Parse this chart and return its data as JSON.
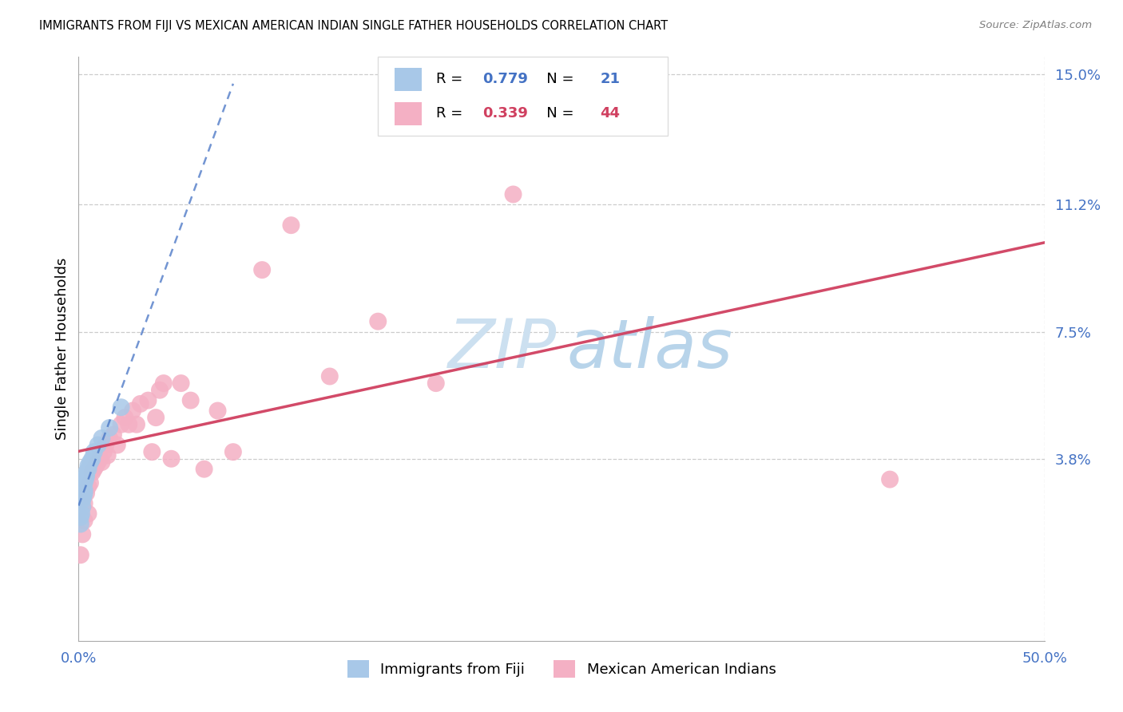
{
  "title": "IMMIGRANTS FROM FIJI VS MEXICAN AMERICAN INDIAN SINGLE FATHER HOUSEHOLDS CORRELATION CHART",
  "source": "Source: ZipAtlas.com",
  "ylabel": "Single Father Households",
  "xlim": [
    0.0,
    0.5
  ],
  "ylim": [
    -0.015,
    0.155
  ],
  "xtick_positions": [
    0.0,
    0.1,
    0.2,
    0.3,
    0.4,
    0.5
  ],
  "xticklabels": [
    "0.0%",
    "",
    "",
    "",
    "",
    "50.0%"
  ],
  "yticks_right": [
    0.038,
    0.075,
    0.112,
    0.15
  ],
  "yticklabels_right": [
    "3.8%",
    "7.5%",
    "11.2%",
    "15.0%"
  ],
  "fiji_R": "0.779",
  "fiji_N": "21",
  "mex_R": "0.339",
  "mex_N": "44",
  "fiji_scatter_color": "#a8c8e8",
  "mex_scatter_color": "#f4b0c4",
  "fiji_line_color": "#4472c4",
  "mex_line_color": "#d04060",
  "label_color": "#4472c4",
  "watermark_zip_color": "#cce0f0",
  "watermark_atlas_color": "#b8d4ea",
  "fiji_x": [
    0.001,
    0.001,
    0.0015,
    0.002,
    0.002,
    0.0025,
    0.003,
    0.003,
    0.003,
    0.0035,
    0.004,
    0.004,
    0.005,
    0.005,
    0.006,
    0.007,
    0.008,
    0.01,
    0.012,
    0.016,
    0.022
  ],
  "fiji_y": [
    0.019,
    0.021,
    0.022,
    0.024,
    0.026,
    0.027,
    0.028,
    0.029,
    0.031,
    0.032,
    0.033,
    0.034,
    0.035,
    0.036,
    0.037,
    0.038,
    0.04,
    0.042,
    0.044,
    0.047,
    0.053
  ],
  "mex_x": [
    0.001,
    0.002,
    0.003,
    0.003,
    0.004,
    0.005,
    0.005,
    0.006,
    0.007,
    0.008,
    0.009,
    0.01,
    0.011,
    0.012,
    0.013,
    0.014,
    0.015,
    0.016,
    0.018,
    0.02,
    0.022,
    0.024,
    0.026,
    0.028,
    0.03,
    0.032,
    0.036,
    0.038,
    0.04,
    0.042,
    0.044,
    0.048,
    0.053,
    0.058,
    0.065,
    0.072,
    0.08,
    0.095,
    0.11,
    0.13,
    0.155,
    0.185,
    0.225,
    0.42
  ],
  "mex_y": [
    0.01,
    0.016,
    0.02,
    0.025,
    0.028,
    0.022,
    0.03,
    0.031,
    0.034,
    0.035,
    0.036,
    0.037,
    0.038,
    0.037,
    0.04,
    0.042,
    0.039,
    0.044,
    0.045,
    0.042,
    0.048,
    0.05,
    0.048,
    0.052,
    0.048,
    0.054,
    0.055,
    0.04,
    0.05,
    0.058,
    0.06,
    0.038,
    0.06,
    0.055,
    0.035,
    0.052,
    0.04,
    0.093,
    0.106,
    0.062,
    0.078,
    0.06,
    0.115,
    0.032
  ]
}
